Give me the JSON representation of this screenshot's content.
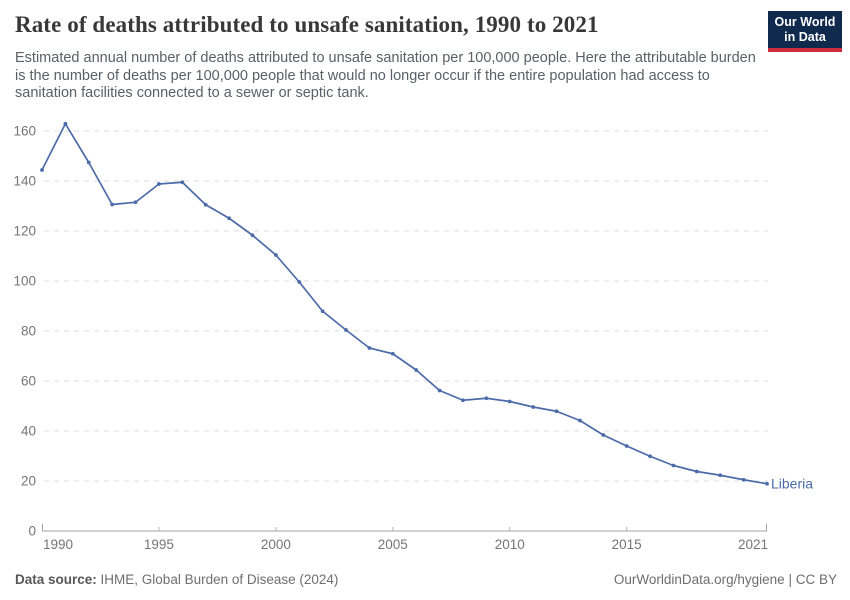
{
  "header": {
    "title": "Rate of deaths attributed to unsafe sanitation, 1990 to 2021",
    "subtitle": "Estimated annual number of deaths attributed to unsafe sanitation per 100,000 people. Here the attributable burden is the number of deaths per 100,000 people that would no longer occur if the entire population had access to sanitation facilities connected to a sewer or septic tank."
  },
  "logo": {
    "line1": "Our World",
    "line2": "in Data",
    "bg_color": "#102a4d",
    "accent_color": "#cd2d3c"
  },
  "chart_data": {
    "type": "line",
    "title": "Rate of deaths attributed to unsafe sanitation, 1990 to 2021",
    "xlabel": "",
    "ylabel": "",
    "ylim": [
      0,
      160
    ],
    "ytick_step": 20,
    "xticks": [
      1990,
      1995,
      2000,
      2005,
      2010,
      2015,
      2021
    ],
    "grid": "dashed-horizontal",
    "legend": "end-of-line-label",
    "x": [
      1990,
      1991,
      1992,
      1993,
      1994,
      1995,
      1996,
      1997,
      1998,
      1999,
      2000,
      2001,
      2002,
      2003,
      2004,
      2005,
      2006,
      2007,
      2008,
      2009,
      2010,
      2011,
      2012,
      2013,
      2014,
      2015,
      2016,
      2017,
      2018,
      2019,
      2020,
      2021
    ],
    "series": [
      {
        "name": "Liberia",
        "color": "#4c6ba8",
        "values": [
          144.4,
          162.9,
          147.4,
          130.6,
          131.5,
          138.8,
          139.5,
          130.5,
          125.1,
          118.3,
          110.4,
          99.6,
          87.9,
          80.4,
          73.2,
          70.9,
          64.4,
          56.2,
          52.3,
          53.1,
          51.8,
          49.6,
          47.9,
          44.2,
          38.4,
          34.0,
          29.9,
          26.2,
          23.8,
          22.3,
          20.5,
          18.9
        ]
      }
    ],
    "axis_colors": {
      "gridline": "#dcdcdc",
      "axis_line": "#a3a3a3",
      "tick_label": "#757575"
    }
  },
  "footer": {
    "source_label": "Data source:",
    "source_value": "IHME, Global Burden of Disease (2024)",
    "url": "OurWorldinData.org/hygiene",
    "divider": "|",
    "license": "CC BY"
  }
}
